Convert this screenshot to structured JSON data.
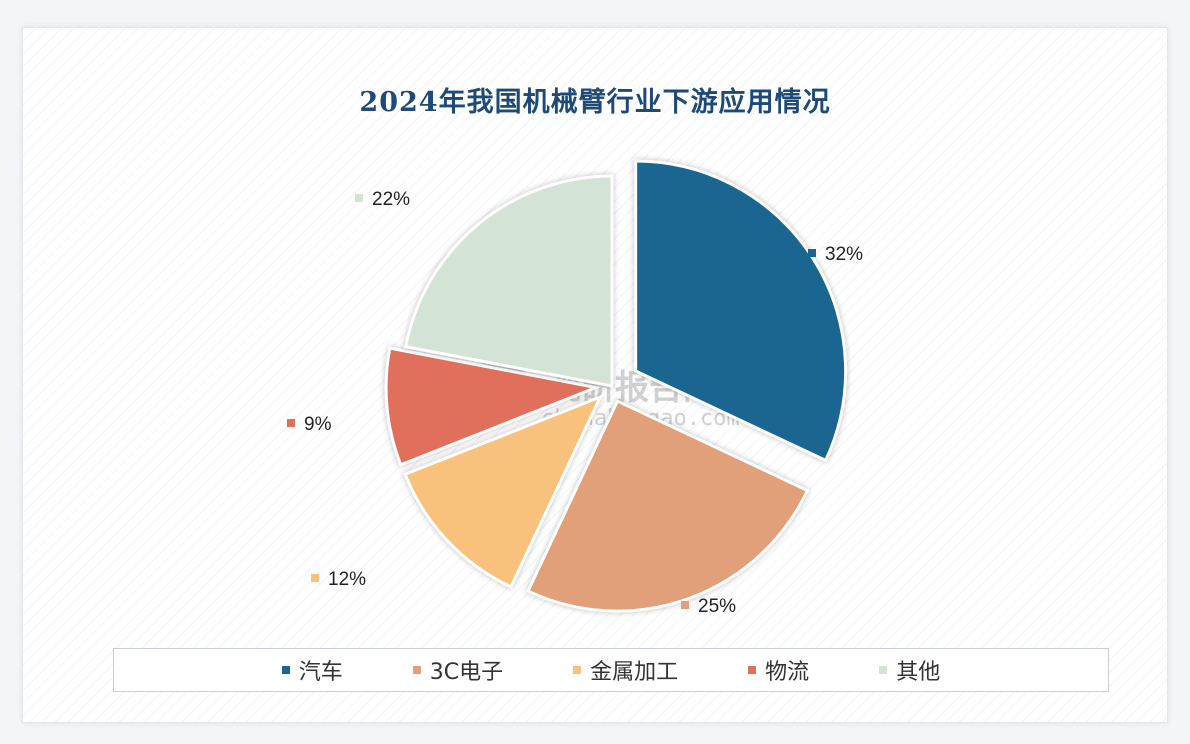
{
  "chart_data": {
    "type": "pie",
    "title": "2024年我国机械臂行业下游应用情况",
    "series": [
      {
        "name": "汽车",
        "value": 32,
        "label": "32%",
        "color": "#1b6690"
      },
      {
        "name": "3C电子",
        "value": 25,
        "label": "25%",
        "color": "#e2a07a"
      },
      {
        "name": "金属加工",
        "value": 12,
        "label": "12%",
        "color": "#f8c27c"
      },
      {
        "name": "物流",
        "value": 9,
        "label": "9%",
        "color": "#e0705c"
      },
      {
        "name": "其他",
        "value": 22,
        "label": "22%",
        "color": "#d3e3d6"
      }
    ],
    "legend_position": "bottom"
  },
  "watermark": {
    "name": "观研报告网",
    "url": "chinabaogao.com"
  }
}
